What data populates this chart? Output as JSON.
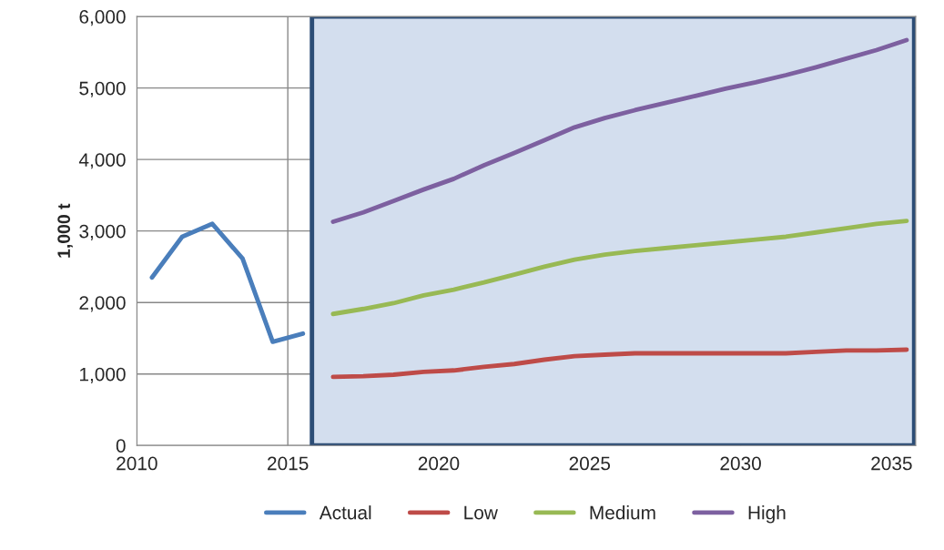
{
  "chart_data": {
    "type": "line",
    "ylabel": "1,000 t",
    "xlim": [
      2010,
      2035.8
    ],
    "xticks": [
      2010,
      2015,
      2020,
      2025,
      2030,
      2035
    ],
    "ylim": [
      0,
      6000
    ],
    "yticks": [
      {
        "value": 0,
        "label": "0"
      },
      {
        "value": 1000,
        "label": "1,000"
      },
      {
        "value": 2000,
        "label": "2,000"
      },
      {
        "value": 3000,
        "label": "3,000"
      },
      {
        "value": 4000,
        "label": "4,000"
      },
      {
        "value": 5000,
        "label": "5,000"
      },
      {
        "value": 6000,
        "label": "6,000"
      }
    ],
    "grid": true,
    "legend": "bottom",
    "line_style": "solid",
    "marker": "none",
    "bands": [
      {
        "axis": "x",
        "from": 2015.8,
        "to": 2035.75,
        "color": "#d3deee"
      }
    ],
    "series": [
      {
        "name": "Actual",
        "color": "#4a7ebb",
        "x": [
          2010.5,
          2011.5,
          2012.5,
          2013.5,
          2014.5,
          2015.5
        ],
        "values": [
          2350,
          2920,
          3100,
          2615,
          1450,
          1565
        ]
      },
      {
        "name": "Low",
        "color": "#be4b48",
        "x": [
          2016.5,
          2017.5,
          2018.5,
          2019.5,
          2020.5,
          2021.5,
          2022.5,
          2023.5,
          2024.5,
          2025.5,
          2026.5,
          2027.5,
          2028.5,
          2029.5,
          2030.5,
          2031.5,
          2032.5,
          2033.5,
          2034.5,
          2035.5
        ],
        "values": [
          960,
          970,
          990,
          1030,
          1050,
          1100,
          1140,
          1200,
          1250,
          1270,
          1290,
          1290,
          1290,
          1290,
          1290,
          1290,
          1310,
          1330,
          1330,
          1340
        ]
      },
      {
        "name": "Medium",
        "color": "#98b954",
        "x": [
          2016.5,
          2017.5,
          2018.5,
          2019.5,
          2020.5,
          2021.5,
          2022.5,
          2023.5,
          2024.5,
          2025.5,
          2026.5,
          2027.5,
          2028.5,
          2029.5,
          2030.5,
          2031.5,
          2032.5,
          2033.5,
          2034.5,
          2035.5
        ],
        "values": [
          1840,
          1910,
          1990,
          2100,
          2180,
          2280,
          2390,
          2500,
          2600,
          2670,
          2720,
          2760,
          2800,
          2840,
          2880,
          2920,
          2980,
          3040,
          3100,
          3140
        ]
      },
      {
        "name": "High",
        "color": "#7d60a0",
        "x": [
          2016.5,
          2017.5,
          2018.5,
          2019.5,
          2020.5,
          2021.5,
          2022.5,
          2023.5,
          2024.5,
          2025.5,
          2026.5,
          2027.5,
          2028.5,
          2029.5,
          2030.5,
          2031.5,
          2032.5,
          2033.5,
          2034.5,
          2035.5
        ],
        "values": [
          3130,
          3260,
          3420,
          3580,
          3730,
          3920,
          4090,
          4270,
          4450,
          4580,
          4690,
          4790,
          4890,
          4990,
          5080,
          5180,
          5290,
          5410,
          5530,
          5670
        ]
      }
    ]
  }
}
